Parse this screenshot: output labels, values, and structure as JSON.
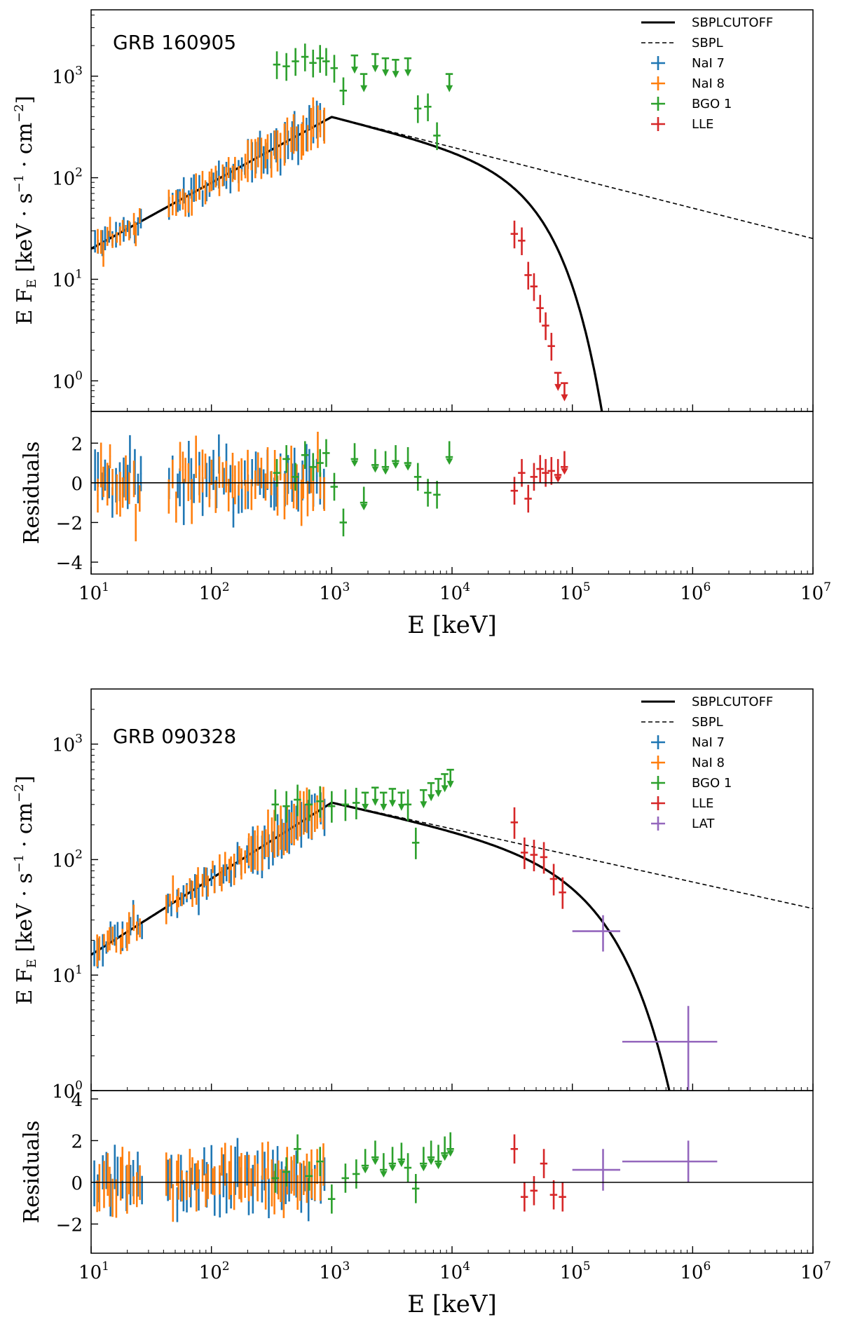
{
  "colors": {
    "nai7": "#1f77b4",
    "nai8": "#ff7f0e",
    "bgo1": "#2ca02c",
    "lle": "#d62728",
    "lat": "#9467bd",
    "model": "#000000"
  },
  "chart_data": [
    {
      "type": "scatter",
      "title": "GRB 160905",
      "xlabel": "E [keV]",
      "ylabel": "E F_E [keV · s^-1 · cm^-2]",
      "residual_label": "Residuals",
      "xlim": [
        10,
        10000000
      ],
      "ylim": [
        0.5,
        4500
      ],
      "rlim": [
        -4.6,
        3.6
      ],
      "x_ticks": [
        {
          "base": "10",
          "exp": "1"
        },
        {
          "base": "10",
          "exp": "2"
        },
        {
          "base": "10",
          "exp": "3"
        },
        {
          "base": "10",
          "exp": "4"
        },
        {
          "base": "10",
          "exp": "5"
        },
        {
          "base": "10",
          "exp": "6"
        },
        {
          "base": "10",
          "exp": "7"
        }
      ],
      "y_ticks": [
        {
          "base": "10",
          "exp": "0"
        },
        {
          "base": "10",
          "exp": "1"
        },
        {
          "base": "10",
          "exp": "2"
        },
        {
          "base": "10",
          "exp": "3"
        }
      ],
      "r_ticks": [
        "-4",
        "-2",
        "0",
        "2"
      ],
      "legend": [
        {
          "label": "SBPLCUTOFF",
          "kind": "solid"
        },
        {
          "label": "SBPL",
          "kind": "dashed"
        },
        {
          "label": "NaI 7",
          "kind": "marker",
          "color": "nai7"
        },
        {
          "label": "NaI 8",
          "kind": "marker",
          "color": "nai8"
        },
        {
          "label": "BGO 1",
          "kind": "marker",
          "color": "bgo1"
        },
        {
          "label": "LLE",
          "kind": "marker",
          "color": "lle"
        }
      ],
      "model": {
        "norm": 20,
        "x0": 10,
        "alpha1": 0.65,
        "xb": 1000,
        "alpha2": -0.3,
        "ecut": 50000,
        "beta": 1.3,
        "xmax": 10000000
      },
      "series": [
        {
          "name": "NaI 7",
          "color": "nai7",
          "x_range": [
            10.5,
            900
          ],
          "gaps": [
            [
              27,
              42
            ]
          ],
          "n": 65,
          "res_sigma": 1.3
        },
        {
          "name": "NaI 8",
          "color": "nai8",
          "x_range": [
            11,
            900
          ],
          "gaps": [
            [
              27,
              42
            ]
          ],
          "n": 70,
          "res_sigma": 1.3
        },
        {
          "name": "BGO 1",
          "color": "bgo1",
          "points": [
            {
              "x": 350,
              "y": 1300,
              "r": 0.5
            },
            {
              "x": 420,
              "y": 1250,
              "r": 1.2
            },
            {
              "x": 500,
              "y": 1400,
              "r": 0.3
            },
            {
              "x": 600,
              "y": 1550,
              "r": 1.4
            },
            {
              "x": 700,
              "y": 1350,
              "r": 0.8
            },
            {
              "x": 800,
              "y": 1500,
              "r": 1.0
            },
            {
              "x": 900,
              "y": 1400,
              "r": 1.5
            },
            {
              "x": 1050,
              "y": 1200,
              "r": -0.2
            },
            {
              "x": 1250,
              "y": 720,
              "r": -2.0
            },
            {
              "x": 1550,
              "y": 1600,
              "r": 1.2,
              "ul": true
            },
            {
              "x": 1850,
              "y": 1050,
              "r": -1.0,
              "ul": true
            },
            {
              "x": 2300,
              "y": 1650,
              "r": 0.9,
              "ul": true
            },
            {
              "x": 2800,
              "y": 1500,
              "r": 0.8,
              "ul": true
            },
            {
              "x": 3400,
              "y": 1450,
              "r": 1.1,
              "ul": true
            },
            {
              "x": 4300,
              "y": 1500,
              "r": 1.0,
              "ul": true
            },
            {
              "x": 5200,
              "y": 480,
              "r": 0.3
            },
            {
              "x": 6300,
              "y": 500,
              "r": -0.5
            },
            {
              "x": 7500,
              "y": 260,
              "r": -0.6
            },
            {
              "x": 9500,
              "y": 1050,
              "r": 1.3,
              "ul": true
            }
          ]
        },
        {
          "name": "LLE",
          "color": "lle",
          "points": [
            {
              "x": 33000,
              "y": 28,
              "r": -0.4
            },
            {
              "x": 38000,
              "y": 24,
              "r": 0.5
            },
            {
              "x": 43000,
              "y": 11,
              "r": -0.8
            },
            {
              "x": 48000,
              "y": 8.5,
              "r": 0.3
            },
            {
              "x": 54000,
              "y": 5.2,
              "r": 0.7
            },
            {
              "x": 60000,
              "y": 3.5,
              "r": 0.5
            },
            {
              "x": 67000,
              "y": 2.2,
              "r": 0.6
            },
            {
              "x": 76000,
              "y": 1.2,
              "r": 0.4,
              "ul": true
            },
            {
              "x": 86000,
              "y": 0.95,
              "r": 0.8,
              "ul": true
            }
          ]
        }
      ]
    },
    {
      "type": "scatter",
      "title": "GRB 090328",
      "xlabel": "E [keV]",
      "ylabel": "E F_E [keV · s^-1 · cm^-2]",
      "residual_label": "Residuals",
      "xlim": [
        10,
        10000000
      ],
      "ylim": [
        1,
        3000
      ],
      "rlim": [
        -3.4,
        4.4
      ],
      "x_ticks": [
        {
          "base": "10",
          "exp": "1"
        },
        {
          "base": "10",
          "exp": "2"
        },
        {
          "base": "10",
          "exp": "3"
        },
        {
          "base": "10",
          "exp": "4"
        },
        {
          "base": "10",
          "exp": "5"
        },
        {
          "base": "10",
          "exp": "6"
        },
        {
          "base": "10",
          "exp": "7"
        }
      ],
      "y_ticks": [
        {
          "base": "10",
          "exp": "0"
        },
        {
          "base": "10",
          "exp": "1"
        },
        {
          "base": "10",
          "exp": "2"
        },
        {
          "base": "10",
          "exp": "3"
        }
      ],
      "r_ticks": [
        "-2",
        "0",
        "2",
        "4"
      ],
      "legend": [
        {
          "label": "SBPLCUTOFF",
          "kind": "solid"
        },
        {
          "label": "SBPL",
          "kind": "dashed"
        },
        {
          "label": "NaI 7",
          "kind": "marker",
          "color": "nai7"
        },
        {
          "label": "NaI 8",
          "kind": "marker",
          "color": "nai8"
        },
        {
          "label": "BGO 1",
          "kind": "marker",
          "color": "bgo1"
        },
        {
          "label": "LLE",
          "kind": "marker",
          "color": "lle"
        },
        {
          "label": "LAT",
          "kind": "marker",
          "color": "lat"
        }
      ],
      "model": {
        "norm": 15,
        "x0": 10,
        "alpha1": 0.66,
        "xb": 1000,
        "alpha2": -0.23,
        "xb2": 35000,
        "alpha3": -0.23,
        "ecut": 150000,
        "beta": 1.0,
        "xmax": 10000000
      },
      "series": [
        {
          "name": "NaI 7",
          "color": "nai7",
          "x_range": [
            10.5,
            900
          ],
          "gaps": [
            [
              27,
              42
            ]
          ],
          "n": 60,
          "res_sigma": 1.1
        },
        {
          "name": "NaI 8",
          "color": "nai8",
          "x_range": [
            11,
            900
          ],
          "gaps": [
            [
              27,
              42
            ]
          ],
          "n": 70,
          "res_sigma": 1.0
        },
        {
          "name": "BGO 1",
          "color": "bgo1",
          "points": [
            {
              "x": 340,
              "y": 300,
              "r": 0.2
            },
            {
              "x": 420,
              "y": 290,
              "r": 0.5
            },
            {
              "x": 520,
              "y": 330,
              "r": 1.6
            },
            {
              "x": 650,
              "y": 300,
              "r": 0.3
            },
            {
              "x": 800,
              "y": 320,
              "r": 1.0
            },
            {
              "x": 1000,
              "y": 290,
              "r": -0.8
            },
            {
              "x": 1300,
              "y": 300,
              "r": 0.2
            },
            {
              "x": 1600,
              "y": 310,
              "r": 0.4
            },
            {
              "x": 1900,
              "y": 380,
              "r": 0.8,
              "ul": true
            },
            {
              "x": 2300,
              "y": 420,
              "r": 1.2,
              "ul": true
            },
            {
              "x": 2700,
              "y": 380,
              "r": 0.6,
              "ul": true
            },
            {
              "x": 3200,
              "y": 410,
              "r": 0.9,
              "ul": true
            },
            {
              "x": 3800,
              "y": 380,
              "r": 1.1,
              "ul": true
            },
            {
              "x": 4300,
              "y": 300,
              "r": 0.7
            },
            {
              "x": 5000,
              "y": 140,
              "r": -0.3
            },
            {
              "x": 5800,
              "y": 400,
              "r": 0.9,
              "ul": true
            },
            {
              "x": 6700,
              "y": 460,
              "r": 1.2,
              "ul": true
            },
            {
              "x": 7700,
              "y": 500,
              "r": 1.0,
              "ul": true
            },
            {
              "x": 8700,
              "y": 550,
              "r": 1.4,
              "ul": true
            },
            {
              "x": 9700,
              "y": 600,
              "r": 1.6,
              "ul": true
            }
          ]
        },
        {
          "name": "LLE",
          "color": "lle",
          "points": [
            {
              "x": 33000,
              "y": 210,
              "r": 1.6
            },
            {
              "x": 40000,
              "y": 115,
              "r": -0.7
            },
            {
              "x": 48000,
              "y": 110,
              "r": -0.4
            },
            {
              "x": 58000,
              "y": 105,
              "r": 0.9
            },
            {
              "x": 70000,
              "y": 68,
              "r": -0.6
            },
            {
              "x": 83000,
              "y": 52,
              "r": -0.7
            }
          ]
        },
        {
          "name": "LAT",
          "color": "lat",
          "points": [
            {
              "x": 180000,
              "y": 24,
              "x_lo": 100000,
              "x_hi": 250000,
              "y_lo": 16,
              "y_hi": 33,
              "r": 0.6,
              "r_err": 1.0
            },
            {
              "x": 920000,
              "y": 2.65,
              "x_lo": 260000,
              "x_hi": 1600000,
              "y_lo": 1.0,
              "y_hi": 5.4,
              "r": 1.0,
              "r_err": 1.0
            }
          ]
        }
      ]
    }
  ]
}
